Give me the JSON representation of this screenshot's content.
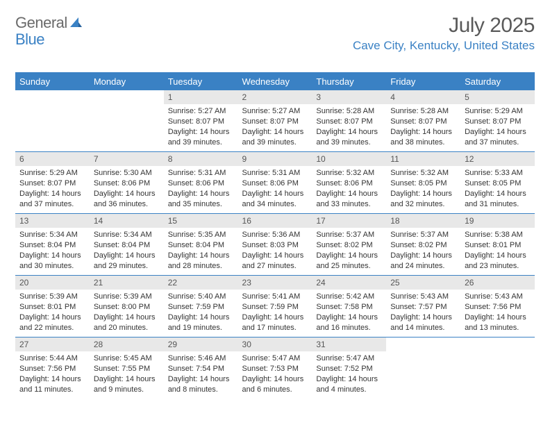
{
  "brand": {
    "part1": "General",
    "part2": "Blue"
  },
  "title": "July 2025",
  "location": "Cave City, Kentucky, United States",
  "colors": {
    "accent": "#3a81c4",
    "header_text": "#ffffff",
    "daynum_bg": "#e8e8e8",
    "body_text": "#333333",
    "muted_text": "#5a5a5a"
  },
  "typography": {
    "title_fontsize": 30,
    "location_fontsize": 17,
    "weekday_fontsize": 13,
    "daynum_fontsize": 12,
    "cell_fontsize": 11
  },
  "weekdays": [
    "Sunday",
    "Monday",
    "Tuesday",
    "Wednesday",
    "Thursday",
    "Friday",
    "Saturday"
  ],
  "weeks": [
    [
      {
        "n": "",
        "lines": []
      },
      {
        "n": "",
        "lines": []
      },
      {
        "n": "1",
        "lines": [
          "Sunrise: 5:27 AM",
          "Sunset: 8:07 PM",
          "Daylight: 14 hours",
          "and 39 minutes."
        ]
      },
      {
        "n": "2",
        "lines": [
          "Sunrise: 5:27 AM",
          "Sunset: 8:07 PM",
          "Daylight: 14 hours",
          "and 39 minutes."
        ]
      },
      {
        "n": "3",
        "lines": [
          "Sunrise: 5:28 AM",
          "Sunset: 8:07 PM",
          "Daylight: 14 hours",
          "and 39 minutes."
        ]
      },
      {
        "n": "4",
        "lines": [
          "Sunrise: 5:28 AM",
          "Sunset: 8:07 PM",
          "Daylight: 14 hours",
          "and 38 minutes."
        ]
      },
      {
        "n": "5",
        "lines": [
          "Sunrise: 5:29 AM",
          "Sunset: 8:07 PM",
          "Daylight: 14 hours",
          "and 37 minutes."
        ]
      }
    ],
    [
      {
        "n": "6",
        "lines": [
          "Sunrise: 5:29 AM",
          "Sunset: 8:07 PM",
          "Daylight: 14 hours",
          "and 37 minutes."
        ]
      },
      {
        "n": "7",
        "lines": [
          "Sunrise: 5:30 AM",
          "Sunset: 8:06 PM",
          "Daylight: 14 hours",
          "and 36 minutes."
        ]
      },
      {
        "n": "8",
        "lines": [
          "Sunrise: 5:31 AM",
          "Sunset: 8:06 PM",
          "Daylight: 14 hours",
          "and 35 minutes."
        ]
      },
      {
        "n": "9",
        "lines": [
          "Sunrise: 5:31 AM",
          "Sunset: 8:06 PM",
          "Daylight: 14 hours",
          "and 34 minutes."
        ]
      },
      {
        "n": "10",
        "lines": [
          "Sunrise: 5:32 AM",
          "Sunset: 8:06 PM",
          "Daylight: 14 hours",
          "and 33 minutes."
        ]
      },
      {
        "n": "11",
        "lines": [
          "Sunrise: 5:32 AM",
          "Sunset: 8:05 PM",
          "Daylight: 14 hours",
          "and 32 minutes."
        ]
      },
      {
        "n": "12",
        "lines": [
          "Sunrise: 5:33 AM",
          "Sunset: 8:05 PM",
          "Daylight: 14 hours",
          "and 31 minutes."
        ]
      }
    ],
    [
      {
        "n": "13",
        "lines": [
          "Sunrise: 5:34 AM",
          "Sunset: 8:04 PM",
          "Daylight: 14 hours",
          "and 30 minutes."
        ]
      },
      {
        "n": "14",
        "lines": [
          "Sunrise: 5:34 AM",
          "Sunset: 8:04 PM",
          "Daylight: 14 hours",
          "and 29 minutes."
        ]
      },
      {
        "n": "15",
        "lines": [
          "Sunrise: 5:35 AM",
          "Sunset: 8:04 PM",
          "Daylight: 14 hours",
          "and 28 minutes."
        ]
      },
      {
        "n": "16",
        "lines": [
          "Sunrise: 5:36 AM",
          "Sunset: 8:03 PM",
          "Daylight: 14 hours",
          "and 27 minutes."
        ]
      },
      {
        "n": "17",
        "lines": [
          "Sunrise: 5:37 AM",
          "Sunset: 8:02 PM",
          "Daylight: 14 hours",
          "and 25 minutes."
        ]
      },
      {
        "n": "18",
        "lines": [
          "Sunrise: 5:37 AM",
          "Sunset: 8:02 PM",
          "Daylight: 14 hours",
          "and 24 minutes."
        ]
      },
      {
        "n": "19",
        "lines": [
          "Sunrise: 5:38 AM",
          "Sunset: 8:01 PM",
          "Daylight: 14 hours",
          "and 23 minutes."
        ]
      }
    ],
    [
      {
        "n": "20",
        "lines": [
          "Sunrise: 5:39 AM",
          "Sunset: 8:01 PM",
          "Daylight: 14 hours",
          "and 22 minutes."
        ]
      },
      {
        "n": "21",
        "lines": [
          "Sunrise: 5:39 AM",
          "Sunset: 8:00 PM",
          "Daylight: 14 hours",
          "and 20 minutes."
        ]
      },
      {
        "n": "22",
        "lines": [
          "Sunrise: 5:40 AM",
          "Sunset: 7:59 PM",
          "Daylight: 14 hours",
          "and 19 minutes."
        ]
      },
      {
        "n": "23",
        "lines": [
          "Sunrise: 5:41 AM",
          "Sunset: 7:59 PM",
          "Daylight: 14 hours",
          "and 17 minutes."
        ]
      },
      {
        "n": "24",
        "lines": [
          "Sunrise: 5:42 AM",
          "Sunset: 7:58 PM",
          "Daylight: 14 hours",
          "and 16 minutes."
        ]
      },
      {
        "n": "25",
        "lines": [
          "Sunrise: 5:43 AM",
          "Sunset: 7:57 PM",
          "Daylight: 14 hours",
          "and 14 minutes."
        ]
      },
      {
        "n": "26",
        "lines": [
          "Sunrise: 5:43 AM",
          "Sunset: 7:56 PM",
          "Daylight: 14 hours",
          "and 13 minutes."
        ]
      }
    ],
    [
      {
        "n": "27",
        "lines": [
          "Sunrise: 5:44 AM",
          "Sunset: 7:56 PM",
          "Daylight: 14 hours",
          "and 11 minutes."
        ]
      },
      {
        "n": "28",
        "lines": [
          "Sunrise: 5:45 AM",
          "Sunset: 7:55 PM",
          "Daylight: 14 hours",
          "and 9 minutes."
        ]
      },
      {
        "n": "29",
        "lines": [
          "Sunrise: 5:46 AM",
          "Sunset: 7:54 PM",
          "Daylight: 14 hours",
          "and 8 minutes."
        ]
      },
      {
        "n": "30",
        "lines": [
          "Sunrise: 5:47 AM",
          "Sunset: 7:53 PM",
          "Daylight: 14 hours",
          "and 6 minutes."
        ]
      },
      {
        "n": "31",
        "lines": [
          "Sunrise: 5:47 AM",
          "Sunset: 7:52 PM",
          "Daylight: 14 hours",
          "and 4 minutes."
        ]
      },
      {
        "n": "",
        "lines": []
      },
      {
        "n": "",
        "lines": []
      }
    ]
  ]
}
